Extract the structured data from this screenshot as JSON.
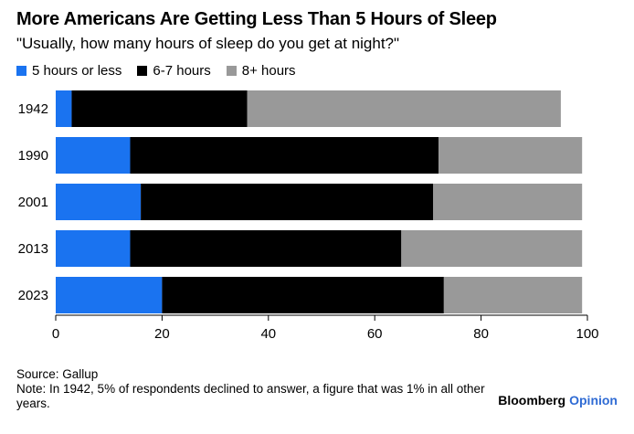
{
  "chart_data": {
    "type": "bar",
    "orientation": "horizontal",
    "stacked": true,
    "title": "More Americans Are Getting Less Than 5 Hours of Sleep",
    "subtitle": "\"Usually, how many hours of sleep do you get at night?\"",
    "categories": [
      "1942",
      "1990",
      "2001",
      "2013",
      "2023"
    ],
    "series": [
      {
        "name": "5 hours or less",
        "color": "#1a73f0",
        "values": [
          3,
          14,
          16,
          14,
          20
        ]
      },
      {
        "name": "6-7 hours",
        "color": "#000000",
        "values": [
          33,
          58,
          55,
          51,
          53
        ]
      },
      {
        "name": "8+ hours",
        "color": "#999999",
        "values": [
          59,
          27,
          28,
          34,
          26
        ]
      }
    ],
    "xlim": [
      0,
      100
    ],
    "xticks": [
      "0",
      "20",
      "40",
      "60",
      "80",
      "100"
    ],
    "legend_position": "top-left"
  },
  "footer": {
    "source": "Source: Gallup",
    "note": "Note: In 1942, 5% of respondents declined to answer, a figure that was 1% in all other years."
  },
  "brand": {
    "name": "Bloomberg",
    "suffix": "Opinion"
  }
}
